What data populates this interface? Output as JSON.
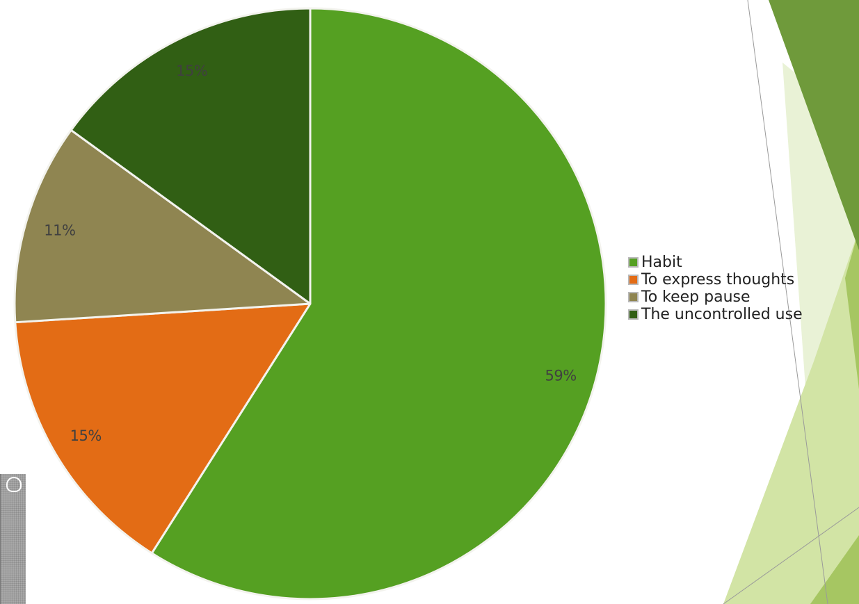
{
  "chart_data": {
    "type": "pie",
    "slices": [
      {
        "label": "Habit",
        "value": 59,
        "display": "59%",
        "color": "#55a022"
      },
      {
        "label": "To express thoughts",
        "value": 15,
        "display": "15%",
        "color": "#e36c15"
      },
      {
        "label": "To keep pause",
        "value": 11,
        "display": "11%",
        "color": "#8f8551"
      },
      {
        "label": "The uncontrolled use",
        "value": 15,
        "display": "15%",
        "color": "#315f14"
      }
    ],
    "legend_position": "right",
    "label_color": "#404040",
    "slice_border_color": "#f3f3ee"
  },
  "decoration": {
    "color_dark": "#6f9a3b",
    "color_mid": "#a6c662",
    "color_light": "#d2e4a5",
    "color_pale": "#e9f2d6"
  }
}
